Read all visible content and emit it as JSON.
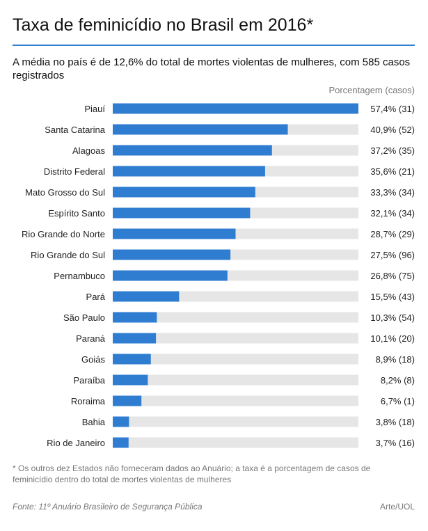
{
  "header": {
    "title": "Taxa de feminicídio no Brasil em 2016*",
    "subtitle": "A média no país é de 12,6% do total de mortes violentas de mulheres, com 585 casos registrados",
    "column_header": "Porcentagem (casos)"
  },
  "chart_data": {
    "type": "bar",
    "orientation": "horizontal",
    "categories": [
      "Piauí",
      "Santa Catarina",
      "Alagoas",
      "Distrito Federal",
      "Mato Grosso do Sul",
      "Espírito Santo",
      "Rio Grande do Norte",
      "Rio Grande do Sul",
      "Pernambuco",
      "Pará",
      "São Paulo",
      "Paraná",
      "Goiás",
      "Paraíba",
      "Roraima",
      "Bahia",
      "Rio de Janeiro"
    ],
    "values": [
      57.4,
      40.9,
      37.2,
      35.6,
      33.3,
      32.1,
      28.7,
      27.5,
      26.8,
      15.5,
      10.3,
      10.1,
      8.9,
      8.2,
      6.7,
      3.8,
      3.7
    ],
    "value_labels": [
      "57,4% (31)",
      "40,9% (52)",
      "37,2% (35)",
      "35,6% (21)",
      "33,3% (34)",
      "32,1% (34)",
      "28,7% (29)",
      "27,5% (96)",
      "26,8% (75)",
      "15,5% (43)",
      "10,3% (54)",
      "10,1% (20)",
      "8,9% (18)",
      "8,2% (8)",
      "6,7% (1)",
      "3,8% (18)",
      "3,7% (16)"
    ],
    "xlim": [
      0,
      57.4
    ],
    "grid": false,
    "bar_color": "#2f7dd1",
    "track_color": "#e6e6e6"
  },
  "footer": {
    "footnote": "* Os outros dez Estados não forneceram dados ao Anuário; a taxa é a porcentagem de casos de feminicídio dentro do total de mortes violentas de mulheres",
    "source": "Fonte: 11º Anuário Brasileiro de Segurança Pública",
    "credit": "Arte/UOL"
  }
}
